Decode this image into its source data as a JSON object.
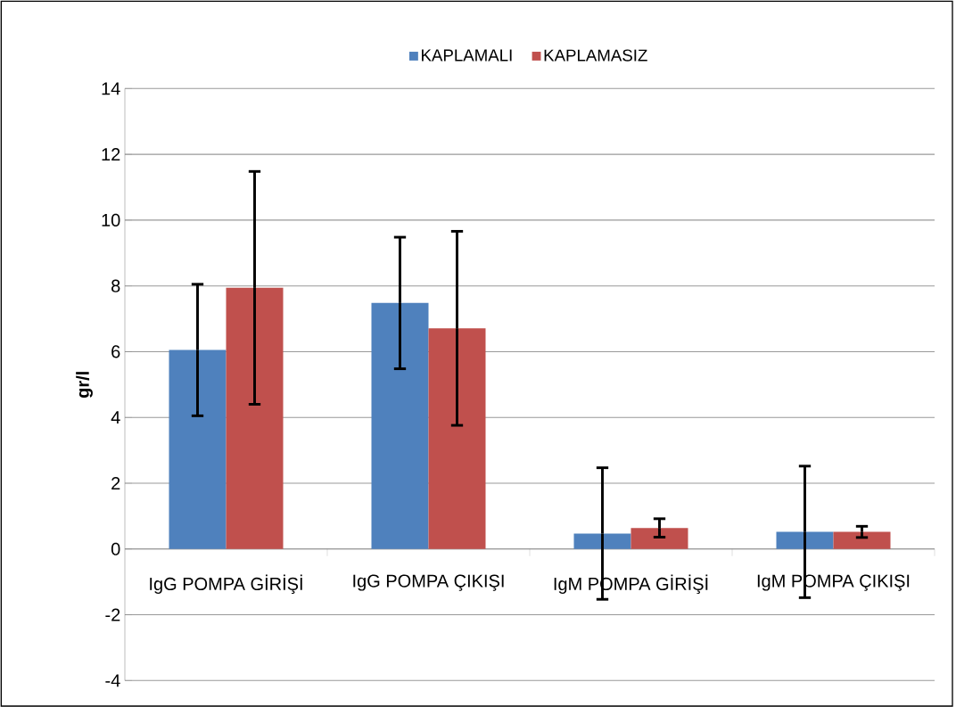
{
  "chart_data": {
    "type": "bar",
    "ylabel": "gr/l",
    "categories": [
      "IgG POMPA GİRİŞİ",
      "IgG POMPA ÇIKIŞI",
      "IgM POMPA GİRİŞİ",
      "IgM POMPA ÇIKIŞI"
    ],
    "series": [
      {
        "name": "KAPLAMALI",
        "color": "#4f81bd",
        "values": [
          6.05,
          7.48,
          0.47,
          0.52
        ],
        "errors": [
          2.0,
          2.0,
          2.0,
          2.0
        ]
      },
      {
        "name": "KAPLAMASIZ",
        "color": "#c0504d",
        "values": [
          7.94,
          6.71,
          0.64,
          0.52
        ],
        "errors": [
          3.54,
          2.95,
          0.28,
          0.17
        ]
      }
    ],
    "ylim": [
      -4,
      14
    ],
    "yticks": [
      -4,
      -2,
      0,
      2,
      4,
      6,
      8,
      10,
      12,
      14
    ],
    "grid": "y",
    "legend": "top"
  }
}
